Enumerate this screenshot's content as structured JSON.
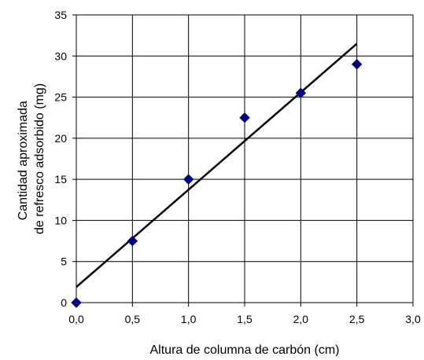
{
  "chart_data": {
    "type": "scatter",
    "xlabel": "Altura de columna de carbón (cm)",
    "ylabel_lines": [
      "Cantidad aproximada",
      "de refresco adsorbido (mg)"
    ],
    "xlim": [
      0,
      3
    ],
    "ylim": [
      0,
      35
    ],
    "xticks": [
      {
        "value": 0,
        "label": "0,0"
      },
      {
        "value": 0.5,
        "label": "0,5"
      },
      {
        "value": 1,
        "label": "1,0"
      },
      {
        "value": 1.5,
        "label": "1,5"
      },
      {
        "value": 2,
        "label": "2,0"
      },
      {
        "value": 2.5,
        "label": "2,5"
      },
      {
        "value": 3,
        "label": "3,0"
      }
    ],
    "yticks": [
      {
        "value": 0,
        "label": "0"
      },
      {
        "value": 5,
        "label": "5"
      },
      {
        "value": 10,
        "label": "10"
      },
      {
        "value": 15,
        "label": "15"
      },
      {
        "value": 20,
        "label": "20"
      },
      {
        "value": 25,
        "label": "25"
      },
      {
        "value": 30,
        "label": "30"
      },
      {
        "value": 35,
        "label": "35"
      }
    ],
    "grid": true,
    "series": [
      {
        "marker": "diamond",
        "color": "#000080",
        "points": [
          {
            "x": 0.0,
            "y": 0.0
          },
          {
            "x": 0.5,
            "y": 7.5
          },
          {
            "x": 1.0,
            "y": 15.0
          },
          {
            "x": 1.5,
            "y": 22.5
          },
          {
            "x": 2.0,
            "y": 25.5
          },
          {
            "x": 2.5,
            "y": 29.0
          }
        ]
      }
    ],
    "trendline": {
      "color": "#000000",
      "x_start": 0.0,
      "x_end": 2.5,
      "y_start": 1.9,
      "y_end": 31.5
    }
  }
}
